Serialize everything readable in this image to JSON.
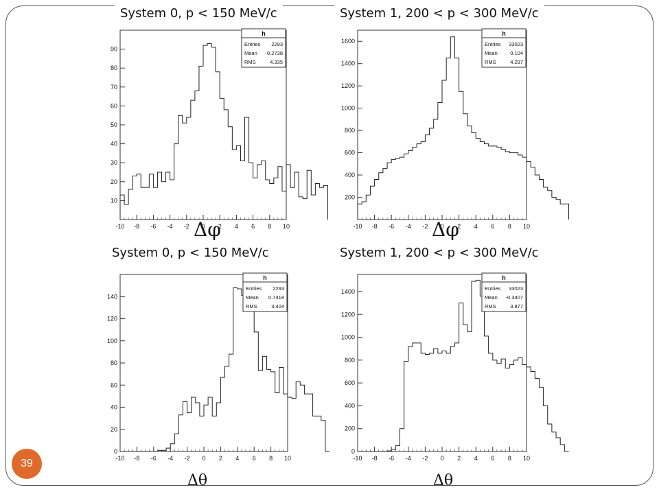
{
  "slide": {
    "page_number": "39"
  },
  "chart_data": [
    {
      "type": "histogram",
      "title": "System 0, p < 150 MeV/c",
      "xlabel": "Δφ",
      "xlim": [
        -10,
        10
      ],
      "ylim": [
        0,
        100
      ],
      "x_ticks": [
        "-10",
        "-8",
        "-6",
        "-4",
        "-2",
        "0",
        "2",
        "4",
        "6",
        "8",
        "10"
      ],
      "y_ticks": [
        "10",
        "20",
        "30",
        "40",
        "50",
        "60",
        "70",
        "80",
        "90"
      ],
      "bin_width": 0.5,
      "values": [
        13,
        8,
        16,
        23,
        24,
        17,
        17,
        24,
        17,
        25,
        20,
        25,
        21,
        40,
        55,
        51,
        54,
        63,
        68,
        81,
        92,
        93,
        91,
        78,
        64,
        58,
        49,
        37,
        39,
        31,
        54,
        30,
        22,
        29,
        31,
        21,
        19,
        22,
        28,
        15,
        29,
        17,
        25,
        12,
        11,
        26,
        13,
        19,
        17,
        18
      ],
      "stats_box": {
        "title": "h",
        "rows": [
          [
            "Entries",
            "2293"
          ],
          [
            "Mean",
            "0.2738"
          ],
          [
            "RMS",
            "4.335"
          ]
        ]
      }
    },
    {
      "type": "histogram",
      "title": "System 1, 200 < p < 300 MeV/c",
      "xlabel": "Δφ",
      "xlim": [
        -10,
        10
      ],
      "ylim": [
        0,
        1700
      ],
      "x_ticks": [
        "-10",
        "-8",
        "-6",
        "-4",
        "-2",
        "0",
        "2",
        "4",
        "6",
        "8",
        "10"
      ],
      "y_ticks": [
        "200",
        "400",
        "600",
        "800",
        "1000",
        "1200",
        "1400",
        "1600"
      ],
      "bin_width": 0.5,
      "values": [
        140,
        160,
        220,
        300,
        360,
        420,
        460,
        510,
        540,
        550,
        560,
        590,
        620,
        650,
        680,
        700,
        760,
        820,
        900,
        1050,
        1250,
        1450,
        1640,
        1450,
        1150,
        950,
        840,
        780,
        730,
        700,
        680,
        660,
        660,
        650,
        630,
        610,
        600,
        600,
        580,
        560,
        520,
        470,
        400,
        360,
        290,
        260,
        200,
        180,
        140,
        140
      ],
      "stats_box": {
        "title": "h",
        "rows": [
          [
            "Entries",
            "33023"
          ],
          [
            "Mean",
            "0.104"
          ],
          [
            "RMS",
            "4.297"
          ]
        ]
      }
    },
    {
      "type": "histogram",
      "title": "System 0, p < 150 MeV/c",
      "xlabel": "Δθ",
      "xlim": [
        -10,
        10
      ],
      "ylim": [
        0,
        160
      ],
      "x_ticks": [
        "-10",
        "-8",
        "-6",
        "-4",
        "-2",
        "0",
        "2",
        "4",
        "6",
        "8",
        "10"
      ],
      "y_ticks": [
        "0",
        "20",
        "40",
        "60",
        "80",
        "100",
        "120",
        "140"
      ],
      "bin_width": 0.5,
      "values": [
        0,
        0,
        0,
        0,
        0,
        0,
        0,
        0,
        0,
        1,
        1,
        3,
        7,
        16,
        33,
        45,
        35,
        49,
        44,
        32,
        42,
        49,
        32,
        44,
        67,
        77,
        88,
        148,
        147,
        141,
        138,
        128,
        108,
        73,
        86,
        74,
        72,
        53,
        76,
        52,
        49,
        48,
        63,
        60,
        52,
        52,
        32,
        32,
        28,
        0
      ],
      "stats_box": {
        "title": "h",
        "rows": [
          [
            "Entries",
            "2293"
          ],
          [
            "Mean",
            "0.7418"
          ],
          [
            "RMS",
            "3.404"
          ]
        ]
      }
    },
    {
      "type": "histogram",
      "title": "System 1, 200 < p < 300 MeV/c",
      "xlabel": "Δθ",
      "xlim": [
        -10,
        10
      ],
      "ylim": [
        0,
        1550
      ],
      "x_ticks": [
        "-10",
        "-8",
        "-6",
        "-4",
        "-2",
        "0",
        "2",
        "4",
        "6",
        "8",
        "10"
      ],
      "y_ticks": [
        "0",
        "200",
        "400",
        "600",
        "800",
        "1000",
        "1200",
        "1400"
      ],
      "bin_width": 0.5,
      "values": [
        0,
        0,
        0,
        0,
        0,
        0,
        0,
        5,
        18,
        50,
        200,
        790,
        920,
        950,
        950,
        860,
        850,
        860,
        900,
        860,
        880,
        860,
        920,
        950,
        1300,
        1110,
        1050,
        1490,
        1500,
        1360,
        1010,
        860,
        800,
        770,
        810,
        730,
        760,
        800,
        820,
        760,
        740,
        700,
        640,
        560,
        400,
        240,
        170,
        120,
        60,
        0
      ],
      "stats_box": {
        "title": "h",
        "rows": [
          [
            "Entries",
            "33023"
          ],
          [
            "Mean",
            "-0.3407"
          ],
          [
            "RMS",
            "3.877"
          ]
        ]
      }
    }
  ]
}
